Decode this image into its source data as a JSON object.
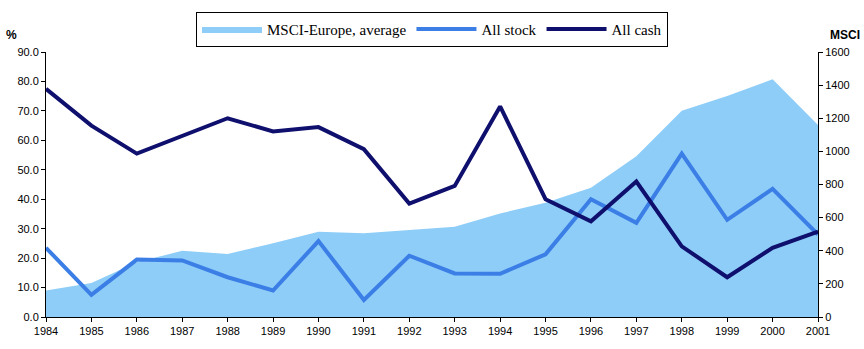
{
  "chart_data": {
    "type": "line",
    "x": [
      1984,
      1985,
      1986,
      1987,
      1988,
      1989,
      1990,
      1991,
      1992,
      1993,
      1994,
      1995,
      1996,
      1997,
      1998,
      1999,
      2000,
      2001
    ],
    "series": [
      {
        "name": "MSCI-Europe, average",
        "type": "area",
        "axis": "y2",
        "color": "#8ECDF8",
        "values": [
          160,
          205,
          330,
          400,
          380,
          445,
          515,
          505,
          525,
          545,
          625,
          690,
          780,
          970,
          1245,
          1335,
          1435,
          1160
        ]
      },
      {
        "name": "All stock",
        "type": "line",
        "color": "#3B7EE6",
        "line_style": "solid",
        "values": [
          23.5,
          7.5,
          19.5,
          19.2,
          13.5,
          9.0,
          25.8,
          5.8,
          20.8,
          14.8,
          14.7,
          21.3,
          40.0,
          32.0,
          55.5,
          33.0,
          43.5,
          28.0
        ]
      },
      {
        "name": "All cash",
        "type": "line",
        "color": "#0F0F6E",
        "line_style": "solid",
        "values": [
          77.5,
          65.0,
          55.5,
          61.5,
          67.5,
          63.0,
          64.5,
          57.0,
          38.5,
          44.5,
          71.5,
          40.0,
          32.5,
          46.0,
          24.0,
          13.5,
          23.5,
          29.0
        ]
      }
    ],
    "xlim": [
      1984,
      2001
    ],
    "xticks": [
      1984,
      1985,
      1986,
      1987,
      1988,
      1989,
      1990,
      1991,
      1992,
      1993,
      1994,
      1995,
      1996,
      1997,
      1998,
      1999,
      2000,
      2001
    ],
    "ylim": [
      0,
      90
    ],
    "yticks": [
      {
        "value": 0,
        "label": "0.0"
      },
      {
        "value": 10,
        "label": "10.0"
      },
      {
        "value": 20,
        "label": "20.0"
      },
      {
        "value": 30,
        "label": "30.0"
      },
      {
        "value": 40,
        "label": "40.0"
      },
      {
        "value": 50,
        "label": "50.0"
      },
      {
        "value": 60,
        "label": "60.0"
      },
      {
        "value": 70,
        "label": "70.0"
      },
      {
        "value": 80,
        "label": "80.0"
      },
      {
        "value": 90,
        "label": "90.0"
      }
    ],
    "y2lim": [
      0,
      1600
    ],
    "y2ticks": [
      0,
      200,
      400,
      600,
      800,
      1000,
      1200,
      1400,
      1600
    ],
    "ylabel": "%",
    "y2label": "MSCI",
    "legend": "top",
    "grid": false
  }
}
